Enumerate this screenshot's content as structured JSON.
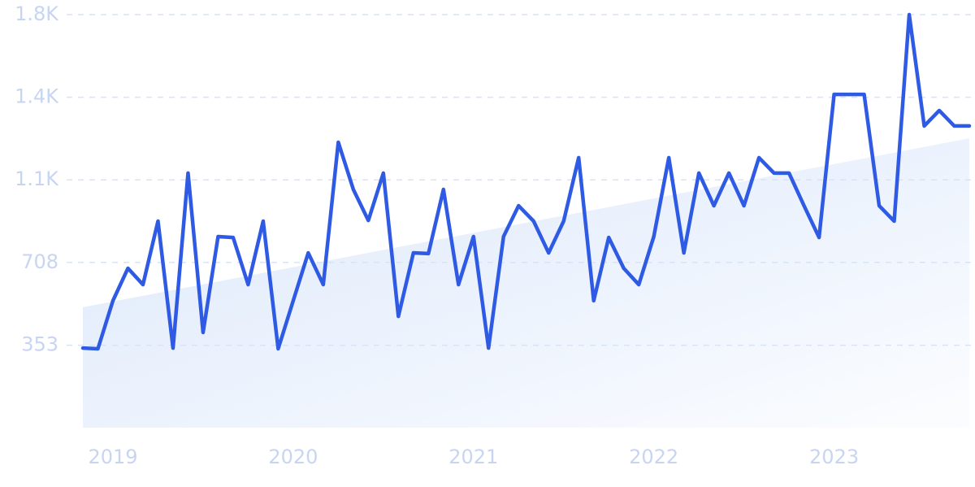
{
  "chart_data": {
    "type": "line",
    "categories": [
      null,
      null,
      "2019",
      null,
      null,
      null,
      null,
      null,
      null,
      null,
      null,
      null,
      null,
      null,
      "2020",
      null,
      null,
      null,
      null,
      null,
      null,
      null,
      null,
      null,
      null,
      null,
      "2021",
      null,
      null,
      null,
      null,
      null,
      null,
      null,
      null,
      null,
      null,
      null,
      "2022",
      null,
      null,
      null,
      null,
      null,
      null,
      null,
      null,
      null,
      null,
      null,
      "2023",
      null,
      null,
      null,
      null,
      null,
      null,
      null,
      null,
      null
    ],
    "series": [
      {
        "color": "#2f5be4",
        "values": [
          341,
          338,
          544,
          683,
          613,
          885,
          341,
          1091,
          408,
          819,
          815,
          613,
          885,
          338,
          544,
          749,
          613,
          1223,
          1021,
          888,
          1091,
          477,
          749,
          746,
          1021,
          613,
          819,
          341,
          819,
          951,
          885,
          749,
          885,
          1157,
          544,
          815,
          683,
          613,
          819,
          1157,
          749,
          1091,
          951,
          1091,
          951,
          1157,
          1091,
          1091,
          951,
          815,
          1428,
          1428,
          1428,
          951,
          885,
          1770,
          1293,
          1359,
          1293,
          1293
        ]
      }
    ],
    "trend_values": [
      516,
      1240
    ],
    "trend_color": "#dce8fb",
    "ylim": [
      0,
      1770
    ],
    "yticks": [
      353,
      708,
      {
        "value": 1062,
        "label": "1.1K"
      },
      {
        "value": 1416,
        "label": "1.4K"
      },
      {
        "value": 1770,
        "label": "1.8K"
      }
    ],
    "grid": true
  }
}
